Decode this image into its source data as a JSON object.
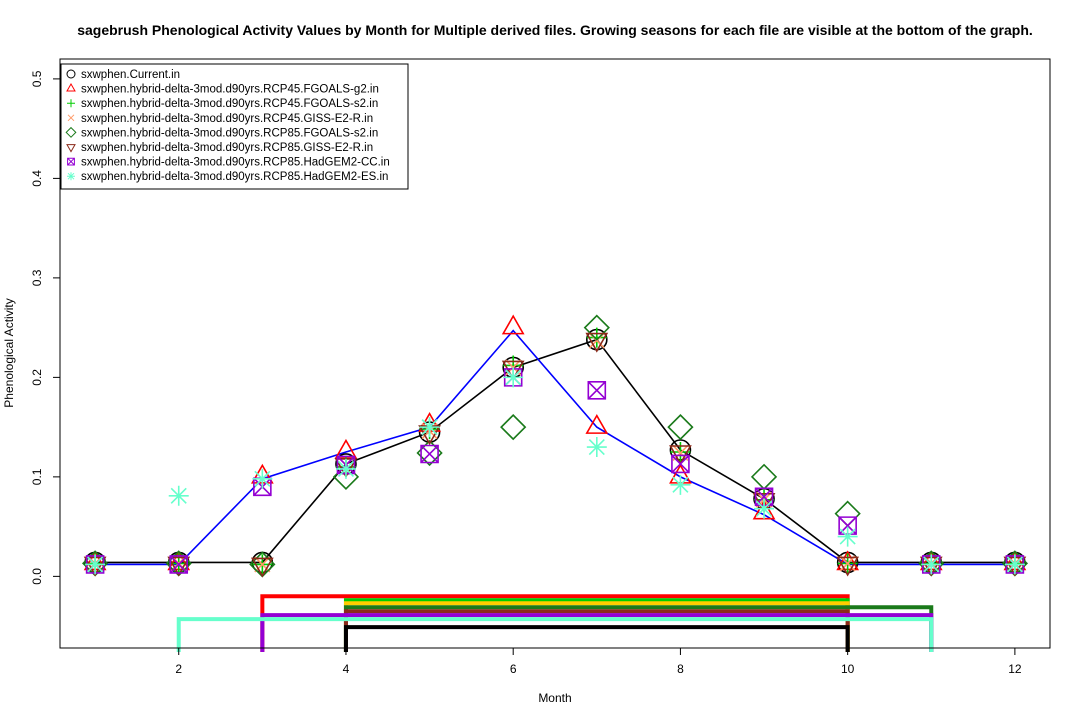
{
  "chart_data": {
    "type": "scatter",
    "title": "sagebrush Phenological Activity Values by Month for Multiple derived files. Growing seasons for each file are visible at the bottom of the graph.",
    "xlabel": "Month",
    "ylabel": "Phenological Activity",
    "xlim": [
      0.58,
      12.42
    ],
    "ylim": [
      -0.072,
      0.52
    ],
    "xticks": [
      2,
      4,
      6,
      8,
      10,
      12
    ],
    "yticks": [
      0.0,
      0.1,
      0.2,
      0.3,
      0.4,
      0.5
    ],
    "ytick_labels": [
      "0.0",
      "0.1",
      "0.2",
      "0.3",
      "0.4",
      "0.5"
    ],
    "x": [
      1,
      2,
      3,
      4,
      5,
      6,
      7,
      8,
      9,
      10,
      11,
      12
    ],
    "legend_position": "top-left",
    "grid": false,
    "series": [
      {
        "name": "sxwphen.Current.in",
        "color": "#000000",
        "marker": "circle",
        "values": [
          0.014,
          0.014,
          0.014,
          0.113,
          0.145,
          0.21,
          0.238,
          0.127,
          0.078,
          0.014,
          0.014,
          0.014
        ]
      },
      {
        "name": "sxwphen.hybrid-delta-3mod.d90yrs.RCP45.FGOALS-g2.in",
        "color": "#ff0000",
        "marker": "triangle-up",
        "values": [
          0.013,
          0.013,
          0.1,
          0.125,
          0.152,
          0.25,
          0.15,
          0.1,
          0.064,
          0.013,
          0.013,
          0.013
        ]
      },
      {
        "name": "sxwphen.hybrid-delta-3mod.d90yrs.RCP45.FGOALS-s2.in",
        "color": "#00cc00",
        "marker": "plus",
        "values": [
          0.013,
          0.013,
          0.012,
          0.11,
          0.148,
          0.212,
          0.24,
          0.125,
          0.077,
          0.013,
          0.013,
          0.013
        ]
      },
      {
        "name": "sxwphen.hybrid-delta-3mod.d90yrs.RCP45.GISS-E2-R.in",
        "color": "#ff9966",
        "marker": "cross",
        "values": [
          0.013,
          0.013,
          0.012,
          0.112,
          0.146,
          0.21,
          0.237,
          0.124,
          0.077,
          0.013,
          0.013,
          0.013
        ]
      },
      {
        "name": "sxwphen.hybrid-delta-3mod.d90yrs.RCP85.FGOALS-s2.in",
        "color": "#1a7a1a",
        "marker": "diamond",
        "values": [
          0.013,
          0.013,
          0.012,
          0.1,
          0.124,
          0.15,
          0.25,
          0.15,
          0.1,
          0.063,
          0.013,
          0.013
        ]
      },
      {
        "name": "sxwphen.hybrid-delta-3mod.d90yrs.RCP85.GISS-E2-R.in",
        "color": "#8b2a1a",
        "marker": "triangle-down",
        "values": [
          0.013,
          0.013,
          0.012,
          0.112,
          0.145,
          0.21,
          0.238,
          0.125,
          0.077,
          0.013,
          0.013,
          0.013
        ]
      },
      {
        "name": "sxwphen.hybrid-delta-3mod.d90yrs.RCP85.HadGEM2-CC.in",
        "color": "#9400d3",
        "marker": "boxed-x",
        "values": [
          0.012,
          0.012,
          0.09,
          0.112,
          0.123,
          0.2,
          0.187,
          0.113,
          0.08,
          0.051,
          0.012,
          0.012
        ]
      },
      {
        "name": "sxwphen.hybrid-delta-3mod.d90yrs.RCP85.HadGEM2-ES.in",
        "color": "#66ffcc",
        "marker": "asterisk",
        "values": [
          0.012,
          0.081,
          0.098,
          0.108,
          0.15,
          0.2,
          0.13,
          0.092,
          0.068,
          0.04,
          0.012,
          0.012
        ]
      }
    ],
    "lines": [
      {
        "color": "#000000",
        "x": [
          1,
          2,
          3,
          4,
          5,
          6,
          7,
          8,
          9,
          10,
          11,
          12
        ],
        "values": [
          0.014,
          0.014,
          0.014,
          0.113,
          0.145,
          0.21,
          0.238,
          0.127,
          0.078,
          0.014,
          0.014,
          0.014
        ]
      },
      {
        "color": "#0000ff",
        "x": [
          1,
          2,
          3,
          4,
          5,
          6,
          7,
          8,
          9,
          10,
          11,
          12
        ],
        "values": [
          0.012,
          0.012,
          0.098,
          0.125,
          0.15,
          0.247,
          0.15,
          0.1,
          0.062,
          0.012,
          0.012,
          0.012
        ]
      }
    ],
    "growing_seasons": [
      {
        "color": "#ff0000",
        "start": 3,
        "end": 10,
        "level": -0.02
      },
      {
        "color": "#00cc00",
        "start": 4,
        "end": 10,
        "level": -0.024
      },
      {
        "color": "#ffcc00",
        "start": 4,
        "end": 10,
        "level": -0.027
      },
      {
        "color": "#1a7a1a",
        "start": 4,
        "end": 11,
        "level": -0.031
      },
      {
        "color": "#8b2a1a",
        "start": 4,
        "end": 10,
        "level": -0.035
      },
      {
        "color": "#9400d3",
        "start": 3,
        "end": 11,
        "level": -0.039
      },
      {
        "color": "#66ffcc",
        "start": 2,
        "end": 11,
        "level": -0.043
      },
      {
        "color": "#000000",
        "start": 4,
        "end": 10,
        "level": -0.051
      }
    ]
  }
}
